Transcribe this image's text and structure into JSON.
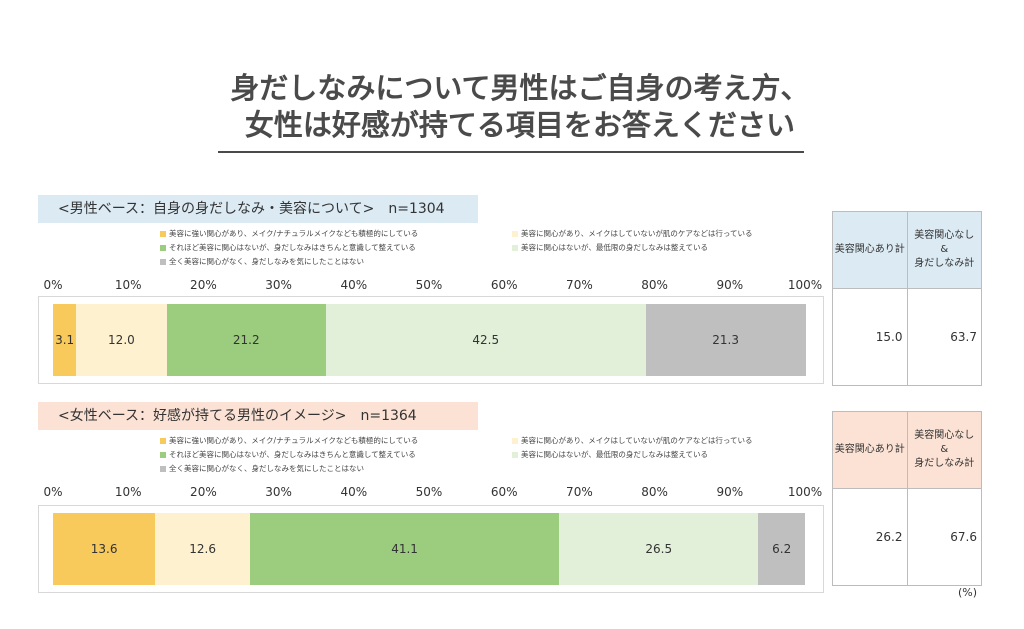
{
  "title": {
    "line1": "身だしなみについて男性はご自身の考え方、",
    "line2": "女性は好感が持てる項目をお答えください"
  },
  "unit": "(%)",
  "ticks": [
    "0%",
    "10%",
    "20%",
    "30%",
    "40%",
    "50%",
    "60%",
    "70%",
    "80%",
    "90%",
    "100%"
  ],
  "colors": {
    "strong": "#f8c95b",
    "care": "#fdf1cf",
    "conscious": "#9ccc7e",
    "minimal": "#e2f0d9",
    "none": "#bfbfbf",
    "head_male_bg": "#dbeaf3",
    "head_female_bg": "#fbe2d5"
  },
  "stat_headers": [
    "美容関心あり計",
    "美容関心なし\n&\n身だしなみ計"
  ],
  "sections": [
    {
      "id": "male",
      "header": "<男性ベース：自身の身だしなみ・美容について>　n=1304",
      "header_bg": "#dbeaf3",
      "legend": [
        "美容に強い関心があり、メイク/ナチュラルメイクなども積極的にしている",
        "美容に関心があり、メイクはしていないが肌のケアなどは行っている",
        "それほど美容に関心はないが、身だしなみはきちんと意識して整えている",
        "美容に関心はないが、最低限の身だしなみは整えている",
        "全く美容に関心がなく、身だしなみを気にしたことはない"
      ],
      "stats_bg": "#dbeaf3",
      "stats": [
        "15.0",
        "63.7"
      ]
    },
    {
      "id": "female",
      "header": "<女性ベース：好感が持てる男性のイメージ>　n=1364",
      "header_bg": "#fbe2d5",
      "legend": [
        "美容に強い関心があり、メイク/ナチュラルメイクなども積極的にしている",
        "美容に関心があり、メイクはしていないが肌のケアなどは行っている",
        "それほど美容に関心はないが、身だしなみはきちんと意識して整えている",
        "美容に関心はないが、最低限の身だしなみは整えている",
        "全く美容に関心がなく、身だしなみを気にしたことはない"
      ],
      "stats_bg": "#fbe2d5",
      "stats": [
        "26.2",
        "67.6"
      ]
    }
  ],
  "chart_data": [
    {
      "type": "bar",
      "orientation": "horizontal",
      "stacked": "100%",
      "xlim": [
        0,
        100
      ],
      "categories": [
        "<男性ベース：自身の身だしなみ・美容について>　n=1304"
      ],
      "series": [
        {
          "name": "美容に強い関心があり、メイク/ナチュラルメイクなども積極的にしている",
          "values": [
            3.1
          ],
          "label": "3.1"
        },
        {
          "name": "美容に関心があり、メイクはしていないが肌のケアなどは行っている",
          "values": [
            12.0
          ],
          "label": "12.0"
        },
        {
          "name": "それほど美容に関心はないが、身だしなみはきちんと意識して整えている",
          "values": [
            21.2
          ],
          "label": "21.2"
        },
        {
          "name": "美容に関心はないが、最低限の身だしなみは整えている",
          "values": [
            42.5
          ],
          "label": "42.5"
        },
        {
          "name": "全く美容に関心がなく、身だしなみを気にしたことはない",
          "values": [
            21.3
          ],
          "label": "21.3"
        }
      ]
    },
    {
      "type": "bar",
      "orientation": "horizontal",
      "stacked": "100%",
      "xlim": [
        0,
        100
      ],
      "categories": [
        "<女性ベース：好感が持てる男性のイメージ>　n=1364"
      ],
      "series": [
        {
          "name": "美容に強い関心があり、メイク/ナチュラルメイクなども積極的にしている",
          "values": [
            13.6
          ],
          "label": "13.6"
        },
        {
          "name": "美容に関心があり、メイクはしていないが肌のケアなどは行っている",
          "values": [
            12.6
          ],
          "label": "12.6"
        },
        {
          "name": "それほど美容に関心はないが、身だしなみはきちんと意識して整えている",
          "values": [
            41.1
          ],
          "label": "41.1"
        },
        {
          "name": "美容に関心はないが、最低限の身だしなみは整えている",
          "values": [
            26.5
          ],
          "label": "26.5"
        },
        {
          "name": "全く美容に関心がなく、身だしなみを気にしたことはない",
          "values": [
            6.2
          ],
          "label": "6.2"
        }
      ]
    }
  ]
}
